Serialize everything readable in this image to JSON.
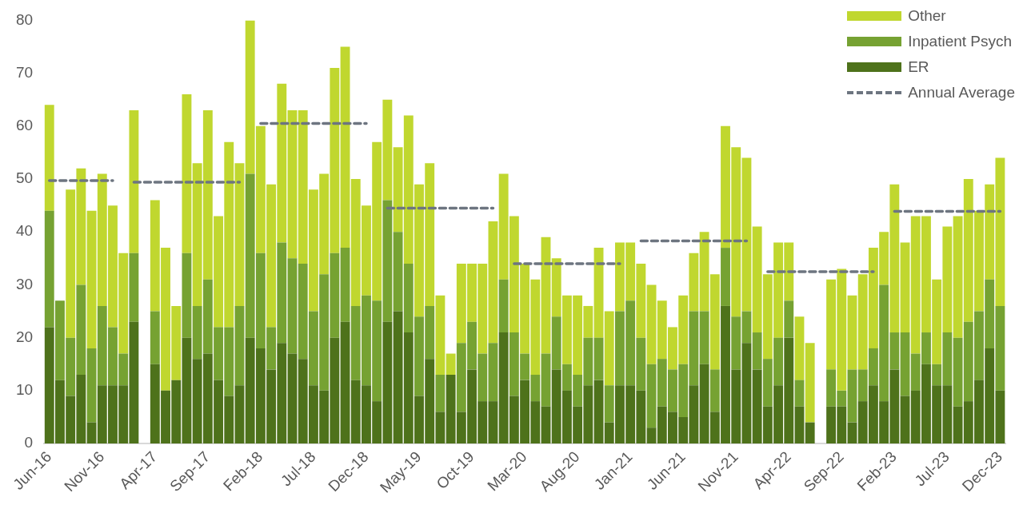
{
  "chart_data": {
    "type": "bar",
    "stacked": true,
    "legend": "top right",
    "grid": false,
    "ylim": [
      0,
      80
    ],
    "yticks": [
      0,
      10,
      20,
      30,
      40,
      50,
      60,
      70,
      80
    ],
    "categories": [
      "Jun-16",
      null,
      null,
      null,
      null,
      "Nov-16",
      null,
      null,
      null,
      null,
      "Apr-17",
      null,
      null,
      null,
      null,
      "Sep-17",
      null,
      null,
      null,
      null,
      "Feb-18",
      null,
      null,
      null,
      null,
      "Jul-18",
      null,
      null,
      null,
      null,
      "Dec-18",
      null,
      null,
      null,
      null,
      "May-19",
      null,
      null,
      null,
      null,
      "Oct-19",
      null,
      null,
      null,
      null,
      "Mar-20",
      null,
      null,
      null,
      null,
      "Aug-20",
      null,
      null,
      null,
      null,
      "Jan-21",
      null,
      null,
      null,
      null,
      "Jun-21",
      null,
      null,
      null,
      null,
      "Nov-21",
      null,
      null,
      null,
      null,
      "Apr-22",
      null,
      null,
      null,
      null,
      "Sep-22",
      null,
      null,
      null,
      null,
      "Feb-23",
      null,
      null,
      null,
      null,
      "Jul-23",
      null,
      null,
      null,
      null,
      "Dec-23"
    ],
    "series": [
      {
        "name": "ER",
        "color": "#4e721b",
        "values": [
          22,
          12,
          9,
          13,
          4,
          11,
          11,
          11,
          23,
          null,
          15,
          10,
          12,
          20,
          16,
          17,
          12,
          9,
          11,
          20,
          18,
          14,
          19,
          17,
          16,
          11,
          10,
          20,
          23,
          12,
          11,
          8,
          23,
          25,
          21,
          9,
          16,
          6,
          13,
          6,
          14,
          8,
          8,
          21,
          9,
          12,
          8,
          7,
          14,
          10,
          7,
          11,
          12,
          4,
          11,
          11,
          10,
          3,
          7,
          6,
          5,
          11,
          15,
          6,
          26,
          14,
          19,
          14,
          7,
          11,
          20,
          7,
          4,
          null,
          7,
          7,
          4,
          8,
          11,
          8,
          14,
          9,
          10,
          15,
          11,
          11,
          7,
          8,
          12,
          18,
          10
        ]
      },
      {
        "name": "Inpatient Psych",
        "color": "#76a232",
        "values": [
          22,
          15,
          11,
          17,
          14,
          15,
          11,
          6,
          13,
          null,
          10,
          0,
          0,
          16,
          10,
          14,
          10,
          13,
          15,
          31,
          18,
          8,
          19,
          18,
          18,
          14,
          22,
          16,
          14,
          14,
          17,
          19,
          23,
          15,
          13,
          15,
          10,
          7,
          0,
          13,
          9,
          9,
          11,
          10,
          12,
          5,
          5,
          10,
          10,
          5,
          6,
          9,
          8,
          7,
          14,
          16,
          10,
          12,
          9,
          8,
          10,
          14,
          10,
          8,
          11,
          10,
          6,
          7,
          9,
          9,
          7,
          5,
          0,
          null,
          7,
          3,
          10,
          6,
          7,
          22,
          7,
          12,
          7,
          6,
          4,
          10,
          13,
          15,
          13,
          13,
          16
        ]
      },
      {
        "name": "Other",
        "color": "#c0d72f",
        "values": [
          20,
          0,
          28,
          22,
          26,
          25,
          23,
          19,
          27,
          null,
          21,
          27,
          14,
          30,
          27,
          32,
          21,
          35,
          27,
          29,
          24,
          27,
          30,
          28,
          29,
          23,
          19,
          35,
          38,
          24,
          17,
          30,
          19,
          16,
          28,
          25,
          27,
          15,
          4,
          15,
          11,
          17,
          23,
          20,
          22,
          17,
          18,
          22,
          11,
          13,
          15,
          6,
          17,
          14,
          13,
          11,
          14,
          15,
          11,
          8,
          13,
          11,
          15,
          18,
          23,
          32,
          29,
          20,
          16,
          18,
          11,
          12,
          15,
          null,
          17,
          23,
          14,
          18,
          19,
          10,
          28,
          17,
          26,
          22,
          16,
          20,
          23,
          27,
          19,
          18,
          28
        ]
      },
      {
        "name": "Annual Average",
        "type": "line",
        "line_style": "dashed",
        "color": "#6d7580",
        "values": [
          49.7,
          49.7,
          49.7,
          49.7,
          49.7,
          49.7,
          49.7,
          null,
          49.4,
          49.4,
          49.4,
          49.4,
          49.4,
          49.4,
          49.4,
          49.4,
          49.4,
          49.4,
          49.4,
          null,
          60.5,
          60.5,
          60.5,
          60.5,
          60.5,
          60.5,
          60.5,
          60.5,
          60.5,
          60.5,
          60.5,
          null,
          44.5,
          44.5,
          44.5,
          44.5,
          44.5,
          44.5,
          44.5,
          44.5,
          44.5,
          44.5,
          44.5,
          null,
          34.0,
          34.0,
          34.0,
          34.0,
          34.0,
          34.0,
          34.0,
          34.0,
          34.0,
          34.0,
          34.0,
          null,
          38.3,
          38.3,
          38.3,
          38.3,
          38.3,
          38.3,
          38.3,
          38.3,
          38.3,
          38.3,
          38.3,
          null,
          32.5,
          32.5,
          32.5,
          32.5,
          32.5,
          32.5,
          32.5,
          32.5,
          32.5,
          32.5,
          32.5,
          null,
          43.9,
          43.9,
          43.9,
          43.9,
          43.9,
          43.9,
          43.9,
          43.9,
          43.9,
          43.9,
          43.9
        ]
      }
    ]
  }
}
